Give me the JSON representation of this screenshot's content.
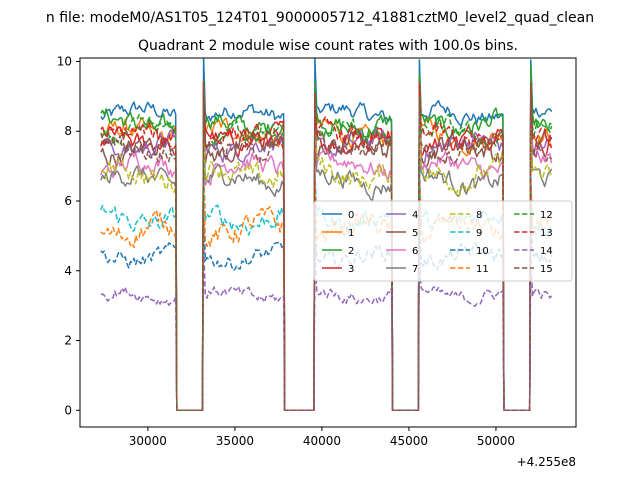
{
  "chart_data": {
    "type": "line",
    "suptitle": "n file: modeM0/AS1T05_124T01_9000005712_41881cztM0_level2_quad_clean",
    "title": "Quadrant 2 module wise count rates with 100.0s bins.",
    "xlabel": "",
    "ylabel": "",
    "xlim": [
      26100,
      54600
    ],
    "ylim": [
      -0.48,
      10.1
    ],
    "x_ticks": [
      30000,
      35000,
      40000,
      45000,
      50000
    ],
    "y_ticks": [
      0,
      2,
      4,
      6,
      8,
      10
    ],
    "offset_text": "+4.255e8",
    "grid": false,
    "legend_position": "center-right",
    "gaps": [
      [
        31600,
        33200
      ],
      [
        37800,
        39600
      ],
      [
        44000,
        45600
      ],
      [
        50400,
        52000
      ]
    ],
    "segments": [
      [
        27300,
        31600
      ],
      [
        33200,
        37800
      ],
      [
        39600,
        44000
      ],
      [
        45600,
        50400
      ],
      [
        52000,
        53200
      ]
    ],
    "bin_seconds": 100,
    "series": [
      {
        "name": "0",
        "mean": 8.5,
        "noise": 0.25,
        "color": "#1f77b4",
        "dash": "solid"
      },
      {
        "name": "1",
        "mean": 7.9,
        "noise": 0.3,
        "color": "#ff7f0e",
        "dash": "solid"
      },
      {
        "name": "2",
        "mean": 8.2,
        "noise": 0.3,
        "color": "#2ca02c",
        "dash": "solid"
      },
      {
        "name": "3",
        "mean": 7.8,
        "noise": 0.3,
        "color": "#d62728",
        "dash": "solid"
      },
      {
        "name": "4",
        "mean": 7.6,
        "noise": 0.3,
        "color": "#9467bd",
        "dash": "solid"
      },
      {
        "name": "5",
        "mean": 7.5,
        "noise": 0.35,
        "color": "#8c564b",
        "dash": "solid"
      },
      {
        "name": "6",
        "mean": 7.0,
        "noise": 0.3,
        "color": "#e377c2",
        "dash": "solid"
      },
      {
        "name": "7",
        "mean": 6.6,
        "noise": 0.3,
        "color": "#7f7f7f",
        "dash": "solid"
      },
      {
        "name": "8",
        "mean": 6.8,
        "noise": 0.35,
        "color": "#bcbd22",
        "dash": "dashed"
      },
      {
        "name": "9",
        "mean": 5.5,
        "noise": 0.3,
        "color": "#17becf",
        "dash": "dashed"
      },
      {
        "name": "10",
        "mean": 4.4,
        "noise": 0.25,
        "color": "#1f77b4",
        "dash": "dashed"
      },
      {
        "name": "11",
        "mean": 5.2,
        "noise": 0.35,
        "color": "#ff7f0e",
        "dash": "dashed"
      },
      {
        "name": "12",
        "mean": 7.9,
        "noise": 0.3,
        "color": "#2ca02c",
        "dash": "dashed"
      },
      {
        "name": "13",
        "mean": 7.8,
        "noise": 0.3,
        "color": "#d62728",
        "dash": "dashed"
      },
      {
        "name": "14",
        "mean": 3.3,
        "noise": 0.2,
        "color": "#9467bd",
        "dash": "dashed"
      },
      {
        "name": "15",
        "mean": 7.6,
        "noise": 0.3,
        "color": "#8c564b",
        "dash": "dashed"
      }
    ]
  }
}
